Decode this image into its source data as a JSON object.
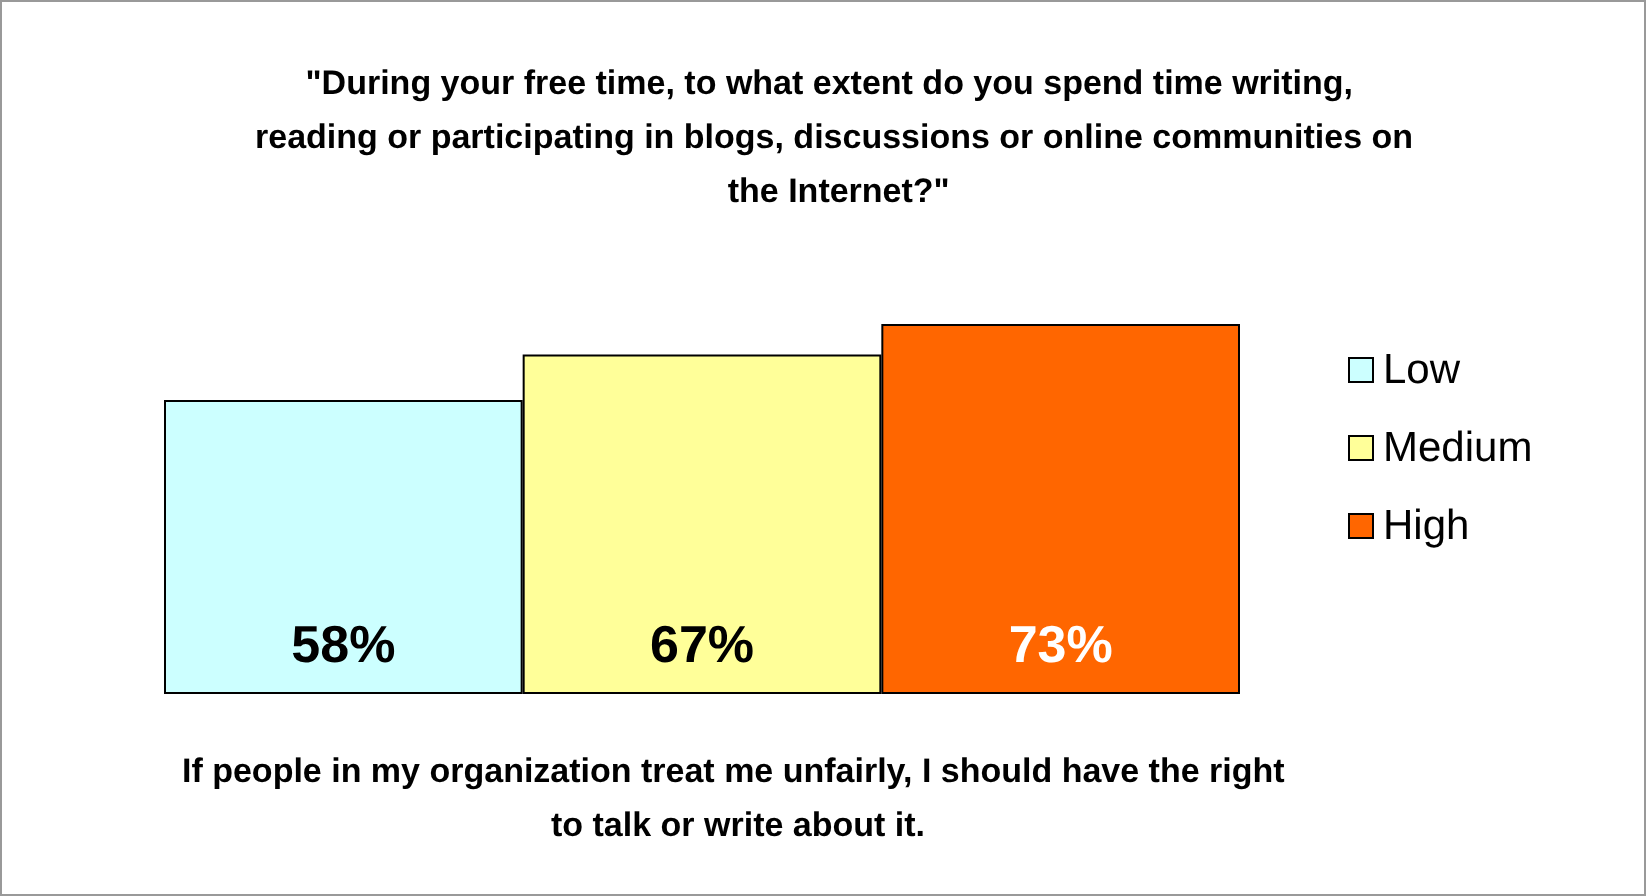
{
  "chart_data": {
    "type": "bar",
    "title": "\"During your free time, to what extent do you spend time writing, reading or participating in blogs, discussions or online communities on the Internet?\"",
    "xlabel": "If people in my organization treat me unfairly, I should have the right to talk or write about it.",
    "categories": [
      null
    ],
    "series": [
      {
        "name": "Low",
        "color": "#ccffff",
        "values": [
          58
        ],
        "value_labels": [
          "58%"
        ]
      },
      {
        "name": "Medium",
        "color": "#ffff99",
        "values": [
          67
        ],
        "value_labels": [
          "67%"
        ]
      },
      {
        "name": "High",
        "color": "#ff6600",
        "values": [
          73
        ],
        "value_labels": [
          "73%"
        ]
      }
    ],
    "legend": "right"
  }
}
